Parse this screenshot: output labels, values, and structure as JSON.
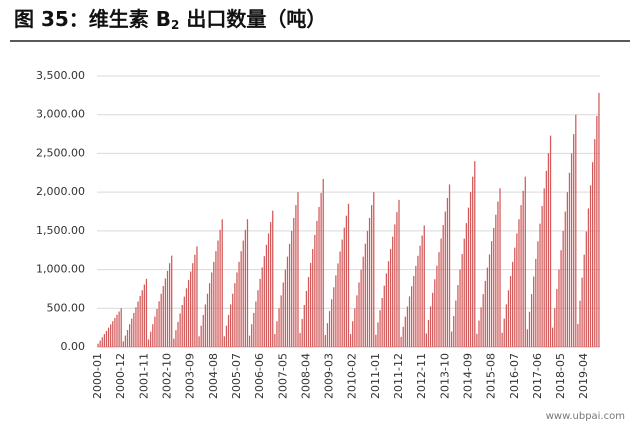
{
  "chart_data": {
    "type": "bar",
    "title": [
      "图 35：维生素 B",
      "2",
      " 出口数量（吨）"
    ],
    "watermark": "www.ubpai.com",
    "color": "#d25a5a",
    "grid": true,
    "ylim": [
      0,
      3500
    ],
    "yticks": [
      {
        "value": 0,
        "label": "0.00"
      },
      {
        "value": 500,
        "label": "500.00"
      },
      {
        "value": 1000,
        "label": "1,000.00"
      },
      {
        "value": 1500,
        "label": "1,500.00"
      },
      {
        "value": 2000,
        "label": "2,000.00"
      },
      {
        "value": 2500,
        "label": "2,500.00"
      },
      {
        "value": 3000,
        "label": "3,000.00"
      },
      {
        "value": 3500,
        "label": "3,500.00"
      }
    ],
    "categories": [
      "2000-01",
      null,
      null,
      null,
      null,
      null,
      null,
      null,
      null,
      null,
      null,
      "2000-12",
      null,
      null,
      null,
      null,
      null,
      null,
      null,
      null,
      null,
      null,
      "2001-11",
      null,
      null,
      null,
      null,
      null,
      null,
      null,
      null,
      null,
      null,
      "2002-10",
      null,
      null,
      null,
      null,
      null,
      null,
      null,
      null,
      null,
      null,
      "2003-09",
      null,
      null,
      null,
      null,
      null,
      null,
      null,
      null,
      null,
      null,
      "2004-08",
      null,
      null,
      null,
      null,
      null,
      null,
      null,
      null,
      null,
      null,
      "2005-07",
      null,
      null,
      null,
      null,
      null,
      null,
      null,
      null,
      null,
      null,
      "2006-06",
      null,
      null,
      null,
      null,
      null,
      null,
      null,
      null,
      null,
      null,
      "2007-05",
      null,
      null,
      null,
      null,
      null,
      null,
      null,
      null,
      null,
      null,
      "2008-04",
      null,
      null,
      null,
      null,
      null,
      null,
      null,
      null,
      null,
      null,
      "2009-03",
      null,
      null,
      null,
      null,
      null,
      null,
      null,
      null,
      null,
      null,
      "2010-02",
      null,
      null,
      null,
      null,
      null,
      null,
      null,
      null,
      null,
      null,
      "2011-01",
      null,
      null,
      null,
      null,
      null,
      null,
      null,
      null,
      null,
      null,
      "2011-12",
      null,
      null,
      null,
      null,
      null,
      null,
      null,
      null,
      null,
      null,
      "2012-11",
      null,
      null,
      null,
      null,
      null,
      null,
      null,
      null,
      null,
      null,
      "2013-10",
      null,
      null,
      null,
      null,
      null,
      null,
      null,
      null,
      null,
      null,
      "2014-09",
      null,
      null,
      null,
      null,
      null,
      null,
      null,
      null,
      null,
      null,
      "2015-08",
      null,
      null,
      null,
      null,
      null,
      null,
      null,
      null,
      null,
      null,
      "2016-07",
      null,
      null,
      null,
      null,
      null,
      null,
      null,
      null,
      null,
      null,
      "2017-06",
      null,
      null,
      null,
      null,
      null,
      null,
      null,
      null,
      null,
      null,
      "2018-05",
      null,
      null,
      null,
      null,
      null,
      null,
      null,
      null,
      null,
      null,
      "2019-04",
      null,
      null,
      null,
      null,
      null,
      null,
      null
    ],
    "values": [
      42,
      83,
      125,
      167,
      208,
      250,
      292,
      333,
      375,
      417,
      458,
      500,
      73,
      147,
      220,
      293,
      367,
      440,
      513,
      587,
      660,
      733,
      807,
      880,
      98,
      197,
      295,
      393,
      492,
      590,
      688,
      787,
      885,
      983,
      1082,
      1180,
      108,
      217,
      325,
      433,
      542,
      650,
      758,
      867,
      975,
      1083,
      1192,
      1300,
      138,
      275,
      413,
      550,
      688,
      825,
      963,
      1100,
      1238,
      1375,
      1513,
      1650,
      138,
      275,
      413,
      550,
      688,
      825,
      963,
      1100,
      1238,
      1375,
      1513,
      1650,
      147,
      293,
      440,
      587,
      733,
      880,
      1027,
      1173,
      1320,
      1467,
      1613,
      1760,
      167,
      333,
      500,
      667,
      833,
      1000,
      1167,
      1333,
      1500,
      1667,
      1833,
      2000,
      181,
      362,
      543,
      723,
      904,
      1085,
      1266,
      1447,
      1628,
      1808,
      1989,
      2170,
      154,
      308,
      463,
      617,
      771,
      925,
      1079,
      1233,
      1388,
      1542,
      1696,
      1850,
      167,
      333,
      500,
      667,
      833,
      1000,
      1167,
      1333,
      1500,
      1667,
      1833,
      2000,
      158,
      317,
      475,
      633,
      792,
      950,
      1108,
      1267,
      1425,
      1583,
      1742,
      1900,
      131,
      262,
      393,
      523,
      654,
      785,
      916,
      1047,
      1178,
      1308,
      1439,
      1570,
      175,
      350,
      525,
      700,
      875,
      1050,
      1225,
      1400,
      1575,
      1750,
      1925,
      2100,
      200,
      400,
      600,
      800,
      1000,
      1200,
      1400,
      1600,
      1800,
      2000,
      2200,
      2400,
      171,
      342,
      513,
      683,
      854,
      1025,
      1196,
      1367,
      1538,
      1708,
      1879,
      2050,
      183,
      367,
      550,
      733,
      917,
      1100,
      1283,
      1467,
      1650,
      1833,
      2017,
      2200,
      228,
      455,
      683,
      910,
      1138,
      1365,
      1593,
      1820,
      2048,
      2275,
      2503,
      2730,
      250,
      500,
      750,
      1000,
      1250,
      1500,
      1750,
      2000,
      2250,
      2500,
      2750,
      3000,
      298,
      597,
      895,
      1193,
      1492,
      1790,
      2088,
      2387,
      2685,
      2983,
      3282
    ]
  }
}
